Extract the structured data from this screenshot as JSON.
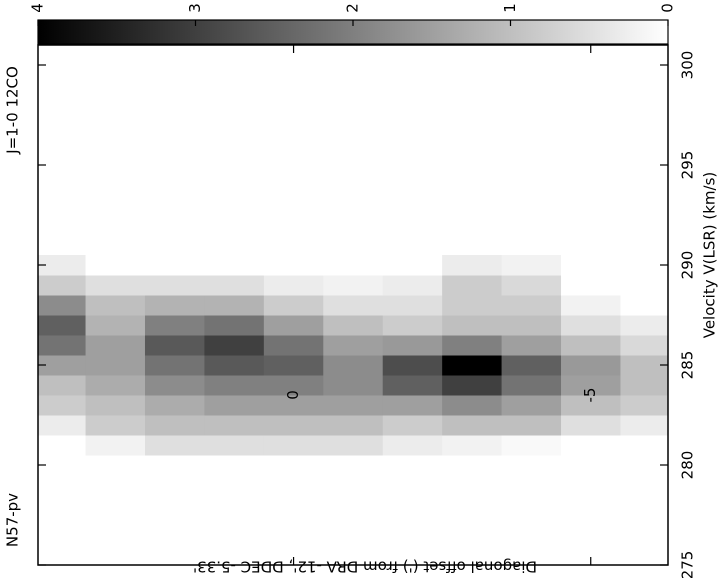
{
  "chart_data": {
    "type": "heatmap",
    "title": "N57-pv",
    "subtitle": "J=1-0 12CO",
    "xlabel": "Diagonal offset (') from DRA -12', DDEC -5.33'",
    "ylabel": "Velocity V(LSR) (km/s)",
    "x": [
      4,
      3,
      2,
      1,
      0,
      -1,
      -2,
      -3,
      -4,
      -5,
      -6
    ],
    "y": [
      281,
      282,
      283,
      284,
      285,
      286,
      287,
      288,
      289,
      290
    ],
    "z": [
      [
        0,
        0.2,
        0.5,
        0.5,
        0.5,
        0.5,
        0.3,
        0.2,
        0.1,
        0,
        0
      ],
      [
        0.3,
        0.8,
        1,
        1,
        1,
        1,
        0.8,
        1,
        1,
        0.5,
        0.3
      ],
      [
        0.8,
        1,
        1.3,
        1.5,
        1.5,
        1.5,
        1.5,
        1.8,
        1.5,
        1,
        0.8
      ],
      [
        1,
        1.3,
        1.8,
        2,
        2,
        1.8,
        2.5,
        3,
        2.2,
        1.5,
        1
      ],
      [
        1.5,
        1.5,
        2.2,
        2.6,
        2.5,
        1.8,
        2.8,
        4,
        2.5,
        1.6,
        1
      ],
      [
        2.2,
        1.5,
        2.6,
        3,
        2.2,
        1.5,
        1.6,
        2,
        1.5,
        1,
        0.6
      ],
      [
        2.5,
        1.2,
        2,
        2.2,
        1.5,
        1,
        0.8,
        1,
        1,
        0.5,
        0.3
      ],
      [
        1.8,
        1,
        1.2,
        1.2,
        0.8,
        0.5,
        0.5,
        0.8,
        0.8,
        0.2,
        0
      ],
      [
        0.8,
        0.5,
        0.5,
        0.5,
        0.3,
        0.2,
        0.3,
        0.8,
        0.6,
        0,
        0
      ],
      [
        0.3,
        0,
        0,
        0,
        0,
        0,
        0,
        0.3,
        0.2,
        0,
        0
      ]
    ],
    "xlim": [
      4.3,
      -6.3
    ],
    "xticks": [
      0,
      -5
    ],
    "ylim": [
      275,
      301
    ],
    "yticks": [
      275,
      280,
      285,
      290,
      295,
      300
    ],
    "clim": [
      0,
      4
    ],
    "cticks": [
      4,
      3,
      2,
      1,
      0
    ],
    "colormap": [
      "#ffffff",
      "#000000"
    ]
  }
}
